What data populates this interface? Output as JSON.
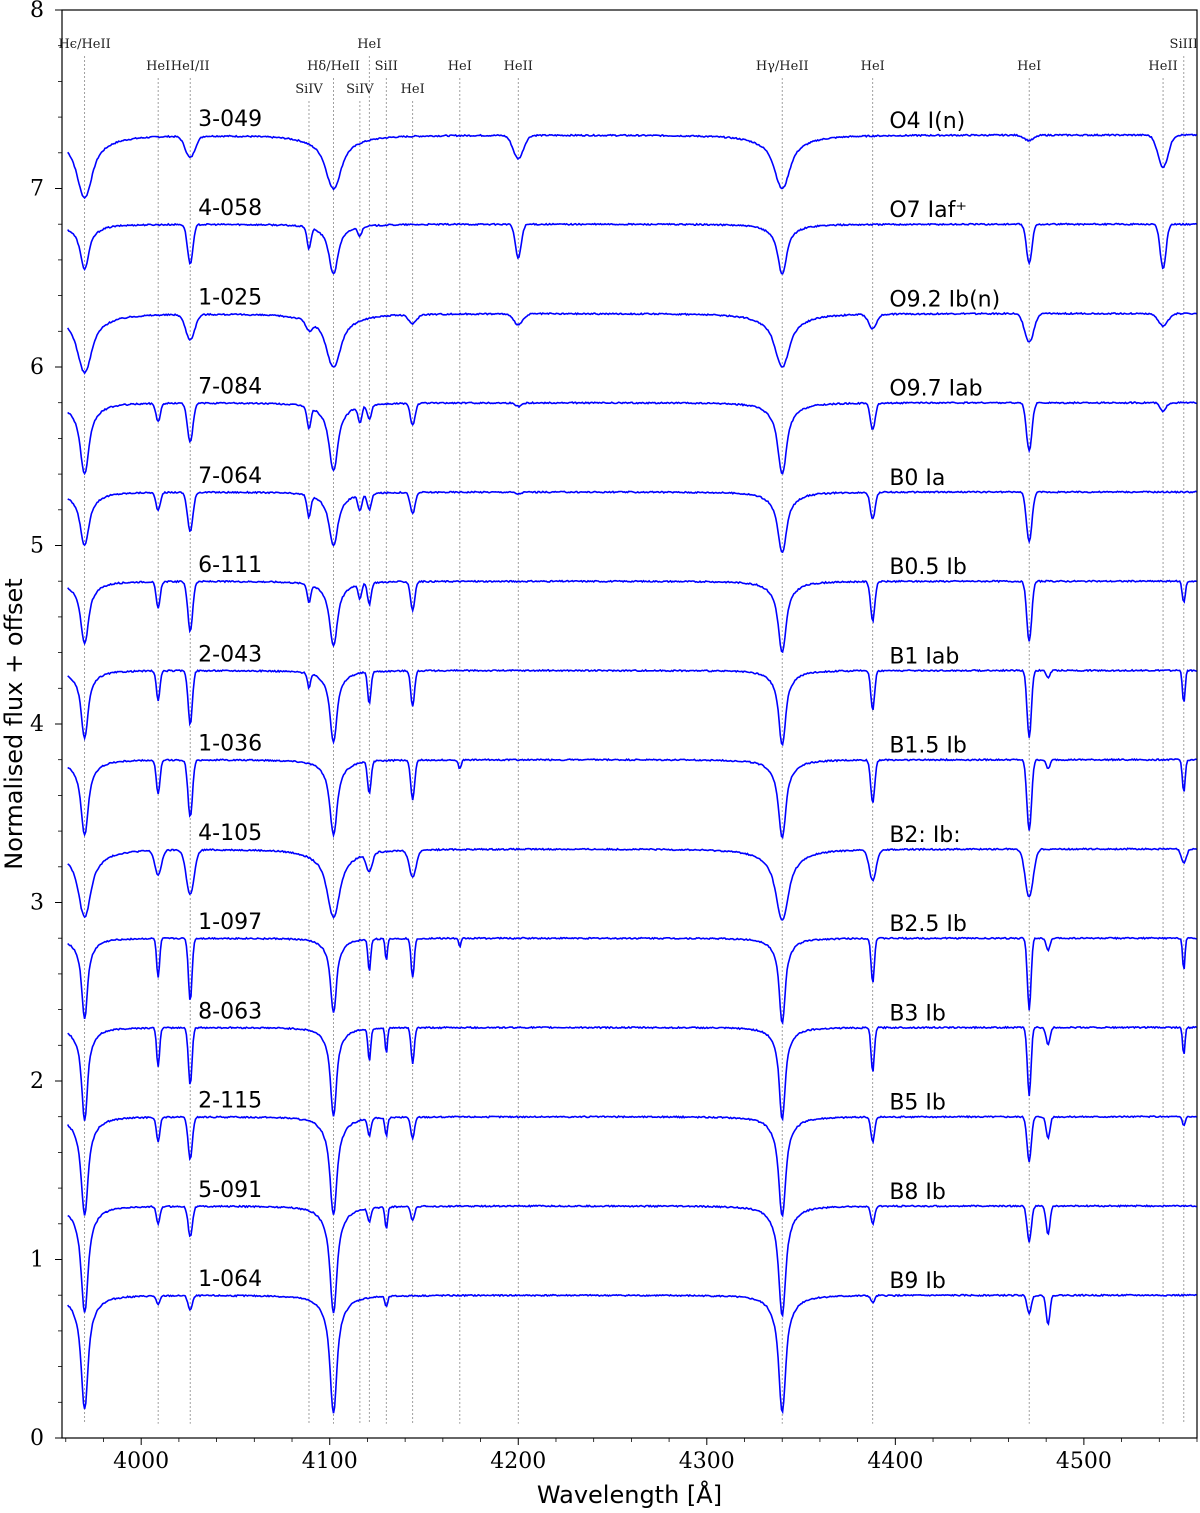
{
  "chart_data": {
    "type": "line",
    "xlabel": "Wavelength [Å]",
    "ylabel": "Normalised flux + offset",
    "xlim": [
      3958,
      4560
    ],
    "ylim": [
      0,
      8
    ],
    "x_ticks": [
      4000,
      4100,
      4200,
      4300,
      4400,
      4500
    ],
    "y_ticks": [
      0,
      1,
      2,
      3,
      4,
      5,
      6,
      7,
      8
    ],
    "grid": false,
    "series_color": "#0000ff",
    "line_markers": [
      {
        "label": "Hϵ/HeII",
        "x": 3970,
        "row": 0
      },
      {
        "label": "HeI",
        "x": 4009,
        "row": 1
      },
      {
        "label": "HeI/II",
        "x": 4026,
        "row": 1
      },
      {
        "label": "SiIV",
        "x": 4089,
        "row": 2
      },
      {
        "label": "Hδ/HeII",
        "x": 4102,
        "row": 1
      },
      {
        "label": "HeI",
        "x": 4121,
        "row": 0
      },
      {
        "label": "SiIV",
        "x": 4116,
        "row": 2
      },
      {
        "label": "SiII",
        "x": 4130,
        "row": 1
      },
      {
        "label": "HeI",
        "x": 4144,
        "row": 2
      },
      {
        "label": "HeI",
        "x": 4169,
        "row": 1
      },
      {
        "label": "HeII",
        "x": 4200,
        "row": 1
      },
      {
        "label": "Hγ/HeII",
        "x": 4340,
        "row": 1
      },
      {
        "label": "HeI",
        "x": 4388,
        "row": 1
      },
      {
        "label": "HeI",
        "x": 4471,
        "row": 1
      },
      {
        "label": "HeII",
        "x": 4542,
        "row": 1
      },
      {
        "label": "SiIII",
        "x": 4553,
        "row": 0
      }
    ],
    "marker_line_bottom": 0.08,
    "marker_line_top": 7.68,
    "line_ids": [
      "Heps",
      "HeI4009",
      "HeI4026",
      "SiIV4089",
      "Hdelta",
      "HeI4121",
      "SiIV4116",
      "SiII4130",
      "HeI4144",
      "HeI4169",
      "HeII4200",
      "Hgamma",
      "HeI4388",
      "HeI4471",
      "HeII4542",
      "SiIII4553"
    ],
    "series": [
      {
        "name": "3-049",
        "sptype": "O4 I(n)",
        "offset": 7.3,
        "depths": {
          "Heps": 0.35,
          "Hdelta": 0.3,
          "Hgamma": 0.3,
          "HeII4200": 0.13,
          "HeII4542": 0.18,
          "HeI4026": 0.12,
          "HeI4471": 0.03
        },
        "broad": 1.6
      },
      {
        "name": "4-058",
        "sptype": "O7 Iaf⁺",
        "offset": 6.8,
        "depths": {
          "Heps": 0.25,
          "Hdelta": 0.28,
          "Hgamma": 0.28,
          "HeII4200": 0.19,
          "HeII4542": 0.25,
          "HeI4026": 0.22,
          "HeI4471": 0.22,
          "SiIV4089": 0.12,
          "SiIV4116": 0.05
        },
        "broad": 0.9
      },
      {
        "name": "1-025",
        "sptype": "O9.2 Ib(n)",
        "offset": 6.3,
        "depths": {
          "Heps": 0.33,
          "Hdelta": 0.3,
          "Hgamma": 0.3,
          "HeII4200": 0.06,
          "HeII4542": 0.07,
          "HeI4026": 0.14,
          "HeI4471": 0.16,
          "HeI4388": 0.08,
          "HeI4144": 0.05,
          "SiIV4089": 0.05
        },
        "broad": 1.5
      },
      {
        "name": "7-084",
        "sptype": "O9.7 Iab",
        "offset": 5.8,
        "depths": {
          "Heps": 0.4,
          "Hdelta": 0.38,
          "Hgamma": 0.4,
          "HeII4200": 0.02,
          "HeII4542": 0.05,
          "HeI4009": 0.1,
          "HeI4026": 0.22,
          "HeI4471": 0.27,
          "HeI4388": 0.15,
          "HeI4144": 0.12,
          "HeI4121": 0.08,
          "SiIV4089": 0.12,
          "SiIV4116": 0.09
        },
        "broad": 0.9
      },
      {
        "name": "7-064",
        "sptype": "B0 Ia",
        "offset": 5.3,
        "depths": {
          "Heps": 0.3,
          "Hdelta": 0.3,
          "Hgamma": 0.34,
          "HeII4200": 0.01,
          "HeI4009": 0.1,
          "HeI4026": 0.22,
          "HeI4471": 0.28,
          "HeI4388": 0.15,
          "HeI4144": 0.12,
          "HeI4121": 0.09,
          "SiIV4089": 0.12,
          "SiIV4116": 0.09
        },
        "broad": 0.9
      },
      {
        "name": "6-111",
        "sptype": "B0.5 Ib",
        "offset": 4.8,
        "depths": {
          "Heps": 0.35,
          "Hdelta": 0.36,
          "Hgamma": 0.4,
          "HeI4009": 0.15,
          "HeI4026": 0.28,
          "HeI4471": 0.34,
          "HeI4388": 0.22,
          "HeI4144": 0.16,
          "HeI4121": 0.12,
          "SiIV4089": 0.1,
          "SiIV4116": 0.08,
          "SiIII4553": 0.12
        },
        "broad": 0.8
      },
      {
        "name": "2-043",
        "sptype": "B1 Iab",
        "offset": 4.3,
        "depths": {
          "Heps": 0.38,
          "Hdelta": 0.4,
          "Hgamma": 0.42,
          "HeI4009": 0.17,
          "HeI4026": 0.3,
          "HeI4471": 0.38,
          "HeI4388": 0.22,
          "HeI4144": 0.2,
          "HeI4121": 0.18,
          "SiIV4089": 0.08,
          "SiIII4553": 0.18
        },
        "broad": 0.7
      },
      {
        "name": "1-036",
        "sptype": "B1.5 Ib",
        "offset": 3.8,
        "depths": {
          "Heps": 0.42,
          "Hdelta": 0.42,
          "Hgamma": 0.44,
          "HeI4009": 0.19,
          "HeI4026": 0.32,
          "HeI4471": 0.4,
          "HeI4388": 0.24,
          "HeI4144": 0.22,
          "HeI4121": 0.18,
          "HeI4169": 0.05,
          "SiIII4553": 0.18
        },
        "broad": 0.75
      },
      {
        "name": "4-105",
        "sptype": "B2: Ib:",
        "offset": 3.3,
        "depths": {
          "Heps": 0.38,
          "Hdelta": 0.38,
          "Hgamma": 0.4,
          "HeI4009": 0.14,
          "HeI4026": 0.25,
          "HeI4471": 0.27,
          "HeI4388": 0.17,
          "HeI4144": 0.15,
          "HeI4121": 0.1,
          "SiIII4553": 0.08
        },
        "broad": 1.3
      },
      {
        "name": "1-097",
        "sptype": "B2.5 Ib",
        "offset": 2.8,
        "depths": {
          "Heps": 0.45,
          "Hdelta": 0.42,
          "Hgamma": 0.48,
          "HeI4009": 0.22,
          "HeI4026": 0.35,
          "HeI4471": 0.4,
          "HeI4388": 0.25,
          "HeI4144": 0.22,
          "HeI4121": 0.18,
          "SiII4130": 0.12,
          "SiIII4553": 0.18,
          "HeI4169": 0.05
        },
        "broad": 0.6
      },
      {
        "name": "8-063",
        "sptype": "B3 Ib",
        "offset": 2.3,
        "depths": {
          "Heps": 0.52,
          "Hdelta": 0.5,
          "Hgamma": 0.52,
          "HeI4009": 0.22,
          "HeI4026": 0.32,
          "HeI4471": 0.38,
          "HeI4388": 0.25,
          "HeI4144": 0.2,
          "HeI4121": 0.18,
          "SiII4130": 0.14,
          "SiIII4553": 0.16
        },
        "broad": 0.6
      },
      {
        "name": "2-115",
        "sptype": "B5 Ib",
        "offset": 1.8,
        "depths": {
          "Heps": 0.55,
          "Hdelta": 0.55,
          "Hgamma": 0.56,
          "HeI4009": 0.14,
          "HeI4026": 0.24,
          "HeI4471": 0.25,
          "HeI4388": 0.14,
          "HeI4144": 0.12,
          "HeI4121": 0.1,
          "SiII4130": 0.1,
          "SiIII4553": 0.05
        },
        "broad": 0.7
      },
      {
        "name": "5-091",
        "sptype": "B8 Ib",
        "offset": 1.3,
        "depths": {
          "Heps": 0.6,
          "Hdelta": 0.6,
          "Hgamma": 0.62,
          "HeI4009": 0.1,
          "HeI4026": 0.17,
          "HeI4471": 0.2,
          "HeI4388": 0.1,
          "HeI4144": 0.08,
          "HeI4121": 0.08,
          "SiII4130": 0.12
        },
        "broad": 0.7
      },
      {
        "name": "1-064",
        "sptype": "B9 Ib",
        "offset": 0.8,
        "depths": {
          "Heps": 0.64,
          "Hdelta": 0.66,
          "Hgamma": 0.66,
          "HeI4009": 0.05,
          "HeI4026": 0.08,
          "HeI4471": 0.1,
          "HeI4388": 0.04,
          "SiII4130": 0.06
        },
        "broad": 0.7
      }
    ],
    "mgii_depths": {
      "5-091": 0.16,
      "1-064": 0.16,
      "2-115": 0.12,
      "8-063": 0.1,
      "1-097": 0.07,
      "1-036": 0.05,
      "2-043": 0.04
    }
  }
}
